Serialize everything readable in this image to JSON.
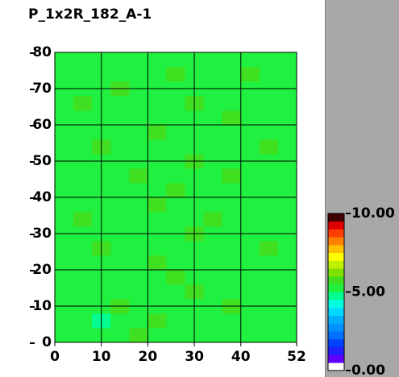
{
  "chart_data": {
    "type": "heatmap",
    "title": "P_1x2R_182_A-1",
    "xlim": [
      0,
      52
    ],
    "xticks": [
      0,
      10,
      20,
      30,
      40,
      52
    ],
    "ylim": [
      0,
      80
    ],
    "yticks": [
      0,
      10,
      20,
      30,
      40,
      50,
      60,
      70,
      80
    ],
    "grid": true,
    "zlim": [
      0,
      10
    ],
    "colorbar_ticks": [
      {
        "value": 0,
        "label": "0.00"
      },
      {
        "value": 5,
        "label": "5.00"
      },
      {
        "value": 10,
        "label": "10.00"
      }
    ],
    "colorscale": [
      "#ffffff",
      "#6000ff",
      "#2020ff",
      "#0040ff",
      "#0070ff",
      "#0090ff",
      "#00b0ff",
      "#00d8ff",
      "#00ffe0",
      "#00ff90",
      "#20f040",
      "#40e020",
      "#80e000",
      "#c0f000",
      "#ffff00",
      "#ffc000",
      "#ff8000",
      "#ff4000",
      "#e00000",
      "#400000"
    ],
    "z": [
      [
        5.3,
        5.1,
        5.4,
        5.2,
        5.5,
        5.0,
        5.3,
        5.2,
        5.4,
        5.1,
        5.3,
        5.2,
        5.4
      ],
      [
        5.2,
        5.4,
        4.9,
        5.3,
        5.2,
        5.5,
        5.1,
        5.4,
        5.3,
        5.2,
        5.0,
        5.3,
        5.2
      ],
      [
        5.1,
        5.3,
        5.2,
        5.6,
        5.3,
        5.1,
        5.4,
        5.2,
        5.3,
        5.5,
        5.2,
        5.1,
        5.3
      ],
      [
        5.4,
        5.2,
        5.3,
        5.1,
        5.4,
        5.3,
        5.2,
        5.6,
        5.1,
        5.3,
        5.4,
        5.2,
        5.0
      ],
      [
        5.2,
        5.0,
        5.3,
        5.4,
        5.2,
        5.3,
        5.5,
        5.3,
        5.2,
        5.4,
        5.1,
        5.3,
        5.2
      ],
      [
        5.3,
        5.4,
        5.2,
        5.1,
        5.3,
        5.6,
        5.2,
        5.4,
        5.3,
        5.1,
        5.3,
        5.4,
        5.1
      ],
      [
        5.1,
        5.3,
        5.5,
        5.2,
        5.4,
        5.2,
        5.3,
        5.1,
        5.4,
        5.3,
        5.2,
        5.5,
        5.3
      ],
      [
        5.4,
        5.2,
        5.1,
        5.3,
        5.2,
        5.4,
        5.3,
        5.5,
        5.2,
        5.4,
        5.3,
        5.1,
        5.2
      ],
      [
        5.2,
        5.5,
        5.3,
        5.4,
        5.1,
        5.3,
        5.2,
        5.3,
        5.6,
        5.2,
        5.4,
        5.3,
        5.4
      ],
      [
        5.3,
        5.1,
        5.4,
        5.2,
        5.3,
        5.5,
        5.4,
        5.2,
        5.3,
        5.1,
        5.3,
        5.2,
        5.3
      ],
      [
        5.0,
        5.3,
        5.2,
        5.4,
        5.3,
        5.2,
        5.5,
        5.3,
        5.4,
        5.3,
        5.2,
        5.4,
        5.1
      ],
      [
        5.4,
        5.2,
        5.3,
        5.1,
        5.5,
        5.3,
        5.2,
        5.4,
        5.2,
        5.5,
        5.3,
        5.2,
        5.3
      ],
      [
        5.2,
        5.4,
        5.3,
        5.3,
        5.2,
        5.1,
        5.4,
        5.6,
        5.3,
        5.2,
        5.4,
        5.3,
        5.2
      ],
      [
        5.3,
        5.1,
        5.5,
        5.2,
        5.4,
        5.3,
        5.2,
        5.3,
        5.1,
        5.4,
        5.2,
        5.5,
        5.4
      ],
      [
        5.1,
        5.3,
        5.2,
        5.4,
        5.3,
        5.5,
        5.3,
        5.2,
        5.4,
        5.3,
        5.1,
        5.3,
        5.2
      ],
      [
        5.4,
        5.2,
        5.4,
        5.3,
        5.1,
        5.2,
        5.4,
        5.3,
        5.2,
        5.5,
        5.3,
        5.2,
        5.3
      ],
      [
        5.2,
        5.5,
        5.1,
        5.3,
        5.4,
        5.3,
        5.2,
        5.5,
        5.3,
        5.2,
        5.4,
        5.1,
        5.4
      ],
      [
        5.3,
        5.2,
        5.3,
        5.5,
        5.2,
        5.4,
        5.1,
        5.3,
        5.4,
        5.3,
        5.2,
        5.4,
        5.2
      ],
      [
        5.1,
        5.4,
        5.2,
        5.3,
        5.3,
        5.2,
        5.5,
        5.2,
        5.3,
        5.1,
        5.5,
        5.3,
        5.3
      ],
      [
        5.3,
        5.2,
        5.4,
        5.1,
        5.2,
        5.4,
        5.3,
        5.4,
        5.2,
        5.3,
        5.2,
        5.4,
        5.1
      ]
    ]
  }
}
